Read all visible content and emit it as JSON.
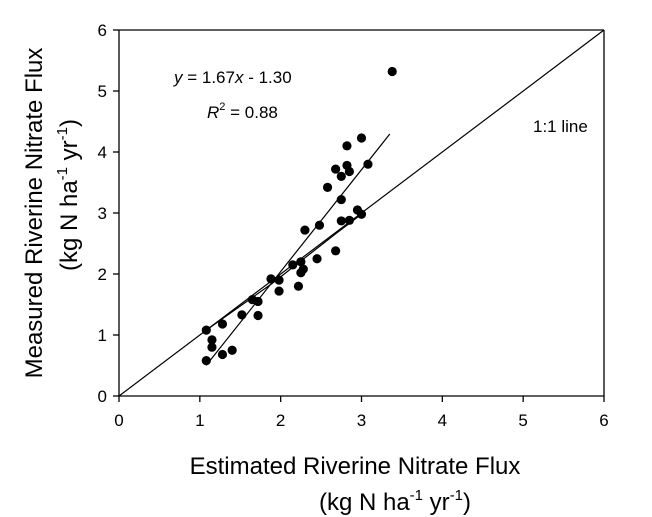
{
  "chart_data": {
    "type": "scatter",
    "title": "",
    "xlabel": "Estimated Riverine Nitrate Flux",
    "xlabel_units": {
      "base": "(kg N ha",
      "exp1": "-1",
      "mid": " yr",
      "exp2": "-1",
      "end": ")"
    },
    "ylabel": "Measured Riverine Nitrate Flux",
    "ylabel_units": {
      "base": "(kg N ha",
      "exp1": "-1",
      "mid": " yr",
      "exp2": "-1",
      "end": ")"
    },
    "xlim": [
      0,
      6
    ],
    "ylim": [
      0,
      6
    ],
    "x_ticks": [
      0,
      1,
      2,
      3,
      4,
      5,
      6
    ],
    "y_ticks": [
      0,
      1,
      2,
      3,
      4,
      5,
      6
    ],
    "grid": false,
    "legend": "none",
    "points": [
      {
        "x": 1.08,
        "y": 1.08
      },
      {
        "x": 1.08,
        "y": 0.58
      },
      {
        "x": 1.15,
        "y": 0.92
      },
      {
        "x": 1.15,
        "y": 0.8
      },
      {
        "x": 1.28,
        "y": 1.18
      },
      {
        "x": 1.28,
        "y": 0.68
      },
      {
        "x": 1.4,
        "y": 0.75
      },
      {
        "x": 1.52,
        "y": 1.33
      },
      {
        "x": 1.65,
        "y": 1.58
      },
      {
        "x": 1.72,
        "y": 1.55
      },
      {
        "x": 1.72,
        "y": 1.32
      },
      {
        "x": 1.88,
        "y": 1.92
      },
      {
        "x": 1.98,
        "y": 1.9
      },
      {
        "x": 1.98,
        "y": 1.72
      },
      {
        "x": 2.15,
        "y": 2.15
      },
      {
        "x": 2.22,
        "y": 1.8
      },
      {
        "x": 2.25,
        "y": 2.02
      },
      {
        "x": 2.25,
        "y": 2.2
      },
      {
        "x": 2.28,
        "y": 2.08
      },
      {
        "x": 2.3,
        "y": 2.72
      },
      {
        "x": 2.45,
        "y": 2.25
      },
      {
        "x": 2.48,
        "y": 2.8
      },
      {
        "x": 2.58,
        "y": 3.42
      },
      {
        "x": 2.68,
        "y": 2.38
      },
      {
        "x": 2.68,
        "y": 3.72
      },
      {
        "x": 2.75,
        "y": 3.6
      },
      {
        "x": 2.75,
        "y": 3.22
      },
      {
        "x": 2.75,
        "y": 2.87
      },
      {
        "x": 2.82,
        "y": 4.1
      },
      {
        "x": 2.82,
        "y": 3.78
      },
      {
        "x": 2.85,
        "y": 3.68
      },
      {
        "x": 2.85,
        "y": 2.88
      },
      {
        "x": 2.95,
        "y": 3.05
      },
      {
        "x": 3.0,
        "y": 4.23
      },
      {
        "x": 3.0,
        "y": 2.98
      },
      {
        "x": 3.08,
        "y": 3.8
      },
      {
        "x": 3.38,
        "y": 5.32
      }
    ],
    "one_to_one_line": {
      "label": "1:1 line",
      "from": [
        0,
        0
      ],
      "to": [
        6,
        6
      ]
    },
    "regression_line": {
      "slope": 1.67,
      "intercept": -1.3,
      "x_range": [
        1.08,
        3.35
      ]
    },
    "lowess_line": {
      "points": [
        [
          1.08,
          1.08
        ],
        [
          1.9,
          1.85
        ],
        [
          2.7,
          2.68
        ],
        [
          3.02,
          3.0
        ]
      ]
    },
    "equation": {
      "y": "y",
      "mid": " = 1.67",
      "x": "x",
      "rest": " - 1.30"
    },
    "r2": {
      "r": "R",
      "exp": "2",
      "rest": " = 0.88"
    }
  }
}
